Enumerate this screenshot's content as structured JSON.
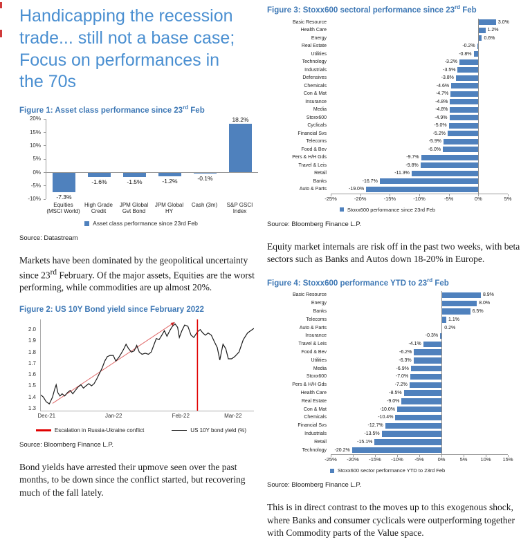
{
  "header": {
    "title_lines": [
      "Handicapping the recession",
      "trade... still not a base case;",
      "Focus on performances in",
      "the 70s"
    ]
  },
  "paragraphs": {
    "p1_pre": "Markets have been dominated by the geopolitical uncertainty since 23",
    "p1_sup": "rd",
    "p1_post": " February. Of the major assets, Equities are the worst performing, while commodities are up almost 20%.",
    "p2": "Bond yields have arrested their upmove seen over the past months, to be down since the conflict started, but recovering much of the fall lately.",
    "p3": "Equity market internals are risk off in the past two weeks, with beta sectors such as Banks and Autos down 18-20% in Europe.",
    "p4": "This is in direct contrast to the moves up to this exogenous shock, where Banks and consumer cyclicals were outperforming together with Commodity parts of the Value space."
  },
  "figures": {
    "fig1": {
      "heading_pre": "Figure 1: Asset class performance since 23",
      "heading_sup": "rd",
      "heading_post": " Feb",
      "source": "Source: Datastream"
    },
    "fig2": {
      "heading": "Figure 2: US 10Y Bond yield since February 2022",
      "source": "Source: Bloomberg Finance L.P."
    },
    "fig3": {
      "heading_pre": "Figure 3: Stoxx600 sectoral performance since 23",
      "heading_sup": "rd",
      "heading_post": " Feb",
      "source": "Source: Bloomberg Finance L.P."
    },
    "fig4": {
      "heading_pre": "Figure 4: Stoxx600 performance YTD to 23",
      "heading_sup": "rd",
      "heading_post": " Feb",
      "source": "Source: Bloomberg Finance L.P."
    }
  },
  "colors": {
    "bar": "#4F81BD",
    "title_blue": "#4a8fd1",
    "figure_title_blue": "#3e78b5",
    "event_red": "#e00000",
    "trend_red": "#e06666",
    "line_black": "#1a1a1a"
  },
  "chart_data": [
    {
      "id": "fig1",
      "type": "bar",
      "title": "Asset class performance since 23rd Feb",
      "categories": [
        "Equities (MSCI World)",
        "High Grade Credit",
        "JPM Global Gvt Bond",
        "JPM Global HY",
        "Cash (3m)",
        "S&P GSCI Index"
      ],
      "values": [
        -7.3,
        -1.6,
        -1.5,
        -1.2,
        -0.1,
        18.2
      ],
      "labels": [
        "-7.3%",
        "-1.6%",
        "-1.5%",
        "-1.2%",
        "-0.1%",
        "18.2%"
      ],
      "ylim": [
        -10,
        20
      ],
      "yticks": [
        20,
        15,
        10,
        5,
        0,
        -5,
        -10
      ],
      "grid": false,
      "legend": "Asset class performance since 23rd Feb",
      "legend_position": "bottom"
    },
    {
      "id": "fig2",
      "type": "line",
      "title": "US 10Y Bond yield since February 2022",
      "ylim": [
        1.28,
        2.09
      ],
      "yticks": [
        2.0,
        1.9,
        1.8,
        1.7,
        1.6,
        1.5,
        1.4,
        1.3
      ],
      "xticks": [
        {
          "x": 0.03,
          "label": "Dec-21"
        },
        {
          "x": 0.345,
          "label": "Jan-22"
        },
        {
          "x": 0.66,
          "label": "Feb-22"
        },
        {
          "x": 0.905,
          "label": "Mar-22"
        }
      ],
      "series": [
        {
          "name": "US 10Y bond yield (%)",
          "points": [
            [
              0.0,
              1.42
            ],
            [
              0.012,
              1.4
            ],
            [
              0.025,
              1.36
            ],
            [
              0.04,
              1.34
            ],
            [
              0.055,
              1.4
            ],
            [
              0.065,
              1.47
            ],
            [
              0.072,
              1.51
            ],
            [
              0.08,
              1.44
            ],
            [
              0.09,
              1.41
            ],
            [
              0.1,
              1.43
            ],
            [
              0.112,
              1.41
            ],
            [
              0.125,
              1.44
            ],
            [
              0.138,
              1.46
            ],
            [
              0.15,
              1.43
            ],
            [
              0.162,
              1.46
            ],
            [
              0.175,
              1.49
            ],
            [
              0.188,
              1.51
            ],
            [
              0.2,
              1.48
            ],
            [
              0.212,
              1.5
            ],
            [
              0.225,
              1.52
            ],
            [
              0.238,
              1.5
            ],
            [
              0.25,
              1.52
            ],
            [
              0.262,
              1.56
            ],
            [
              0.275,
              1.61
            ],
            [
              0.288,
              1.66
            ],
            [
              0.3,
              1.72
            ],
            [
              0.312,
              1.76
            ],
            [
              0.325,
              1.77
            ],
            [
              0.34,
              1.77
            ],
            [
              0.352,
              1.72
            ],
            [
              0.365,
              1.75
            ],
            [
              0.378,
              1.79
            ],
            [
              0.39,
              1.83
            ],
            [
              0.4,
              1.87
            ],
            [
              0.412,
              1.83
            ],
            [
              0.425,
              1.8
            ],
            [
              0.438,
              1.81
            ],
            [
              0.45,
              1.86
            ],
            [
              0.462,
              1.8
            ],
            [
              0.475,
              1.78
            ],
            [
              0.49,
              1.79
            ],
            [
              0.505,
              1.78
            ],
            [
              0.518,
              1.8
            ],
            [
              0.53,
              1.86
            ],
            [
              0.542,
              1.92
            ],
            [
              0.555,
              1.91
            ],
            [
              0.568,
              1.95
            ],
            [
              0.58,
              1.99
            ],
            [
              0.592,
              1.94
            ],
            [
              0.605,
              1.99
            ],
            [
              0.618,
              2.03
            ],
            [
              0.63,
              2.05
            ],
            [
              0.642,
              2.02
            ],
            [
              0.65,
              1.93
            ],
            [
              0.662,
              1.99
            ],
            [
              0.675,
              2.04
            ],
            [
              0.69,
              2.03
            ],
            [
              0.705,
              1.95
            ],
            [
              0.718,
              1.93
            ],
            [
              0.735,
              1.98
            ],
            [
              0.748,
              2.0
            ],
            [
              0.76,
              1.97
            ],
            [
              0.772,
              1.95
            ],
            [
              0.785,
              1.97
            ],
            [
              0.8,
              1.95
            ],
            [
              0.815,
              1.89
            ],
            [
              0.828,
              1.84
            ],
            [
              0.84,
              1.73
            ],
            [
              0.855,
              1.87
            ],
            [
              0.868,
              1.83
            ],
            [
              0.88,
              1.74
            ],
            [
              0.895,
              1.74
            ],
            [
              0.91,
              1.76
            ],
            [
              0.93,
              1.8
            ],
            [
              0.95,
              1.91
            ],
            [
              0.97,
              1.97
            ],
            [
              0.985,
              1.99
            ],
            [
              1.0,
              2.01
            ]
          ]
        }
      ],
      "trend": {
        "from": [
          0.055,
          1.345
        ],
        "to": [
          0.628,
          2.065
        ]
      },
      "event_line": {
        "x": 0.735
      },
      "legend": [
        {
          "label": "Escalation in Russia-Ukraine conflict",
          "thick": true,
          "color": "#e00000"
        },
        {
          "label": "US 10Y bond yield (%)",
          "thick": false,
          "color": "#1a1a1a"
        }
      ]
    },
    {
      "id": "fig3",
      "type": "barh",
      "title": "Stoxx600 sectoral performance since 23rd Feb",
      "categories": [
        "Basic Resource",
        "Health Care",
        "Energy",
        "Real Estate",
        "Utilities",
        "Technology",
        "Industrials",
        "Defensives",
        "Chemicals",
        "Con & Mat",
        "Insurance",
        "Media",
        "Stoxx600",
        "Cyclicals",
        "Financial Svs",
        "Telecoms",
        "Food & Bev",
        "Pers & H/H Gds",
        "Travel & Leis",
        "Retail",
        "Banks",
        "Auto & Parts"
      ],
      "values": [
        3.0,
        1.2,
        0.6,
        -0.2,
        -0.8,
        -3.2,
        -3.5,
        -3.8,
        -4.6,
        -4.7,
        -4.8,
        -4.8,
        -4.9,
        -5.0,
        -5.2,
        -5.9,
        -6.0,
        -9.7,
        -9.8,
        -11.3,
        -16.7,
        -19.0
      ],
      "labels": [
        "3.0%",
        "1.2%",
        "0.6%",
        "-0.2%",
        "-0.8%",
        "-3.2%",
        "-3.5%",
        "-3.8%",
        "-4.6%",
        "-4.7%",
        "-4.8%",
        "-4.8%",
        "-4.9%",
        "-5.0%",
        "-5.2%",
        "-5.9%",
        "-6.0%",
        "-9.7%",
        "-9.8%",
        "-11.3%",
        "-16.7%",
        "-19.0%"
      ],
      "xlim": [
        -25,
        5
      ],
      "xticks": [
        {
          "v": -25,
          "label": "-25%"
        },
        {
          "v": -20,
          "label": "-20%"
        },
        {
          "v": -15,
          "label": "-15%"
        },
        {
          "v": -10,
          "label": "-10%"
        },
        {
          "v": -5,
          "label": "-5%"
        },
        {
          "v": 0,
          "label": "0%"
        },
        {
          "v": 5,
          "label": "5%"
        }
      ],
      "legend": "Stoxx600 performance since 23rd Feb",
      "legend_position": "bottom"
    },
    {
      "id": "fig4",
      "type": "barh",
      "title": "Stoxx600 performance YTD to 23rd Feb",
      "categories": [
        "Basic Resource",
        "Energy",
        "Banks",
        "Telecoms",
        "Auto & Parts",
        "Insurance",
        "Travel & Leis",
        "Food & Bev",
        "Utilities",
        "Media",
        "Stoxx600",
        "Pers & H/H Gds",
        "Health Care",
        "Real Estate",
        "Con & Mat",
        "Chemicals",
        "Financial Svs",
        "Industrials",
        "Retail",
        "Technology"
      ],
      "values": [
        8.9,
        8.0,
        6.5,
        1.1,
        0.2,
        -0.3,
        -4.1,
        -6.2,
        -6.3,
        -6.9,
        -7.0,
        -7.2,
        -8.5,
        -9.0,
        -10.0,
        -10.4,
        -12.7,
        -13.5,
        -15.1,
        -20.2
      ],
      "labels": [
        "8.9%",
        "8.0%",
        "6.5%",
        "1.1%",
        "0.2%",
        "-0.3%",
        "-4.1%",
        "-6.2%",
        "-6.3%",
        "-6.9%",
        "-7.0%",
        "-7.2%",
        "-8.5%",
        "-9.0%",
        "-10.0%",
        "-10.4%",
        "-12.7%",
        "-13.5%",
        "-15.1%",
        "-20.2%"
      ],
      "xlim": [
        -25,
        15
      ],
      "xticks": [
        {
          "v": -25,
          "label": "-25%"
        },
        {
          "v": -20,
          "label": "-20%"
        },
        {
          "v": -15,
          "label": "-15%"
        },
        {
          "v": -10,
          "label": "-10%"
        },
        {
          "v": -5,
          "label": "-5%"
        },
        {
          "v": 0,
          "label": "0%"
        },
        {
          "v": 5,
          "label": "5%"
        },
        {
          "v": 10,
          "label": "10%"
        },
        {
          "v": 15,
          "label": "15%"
        }
      ],
      "legend": "Stoxx600 sector performance YTD to 23rd Feb",
      "legend_position": "bottom"
    }
  ]
}
